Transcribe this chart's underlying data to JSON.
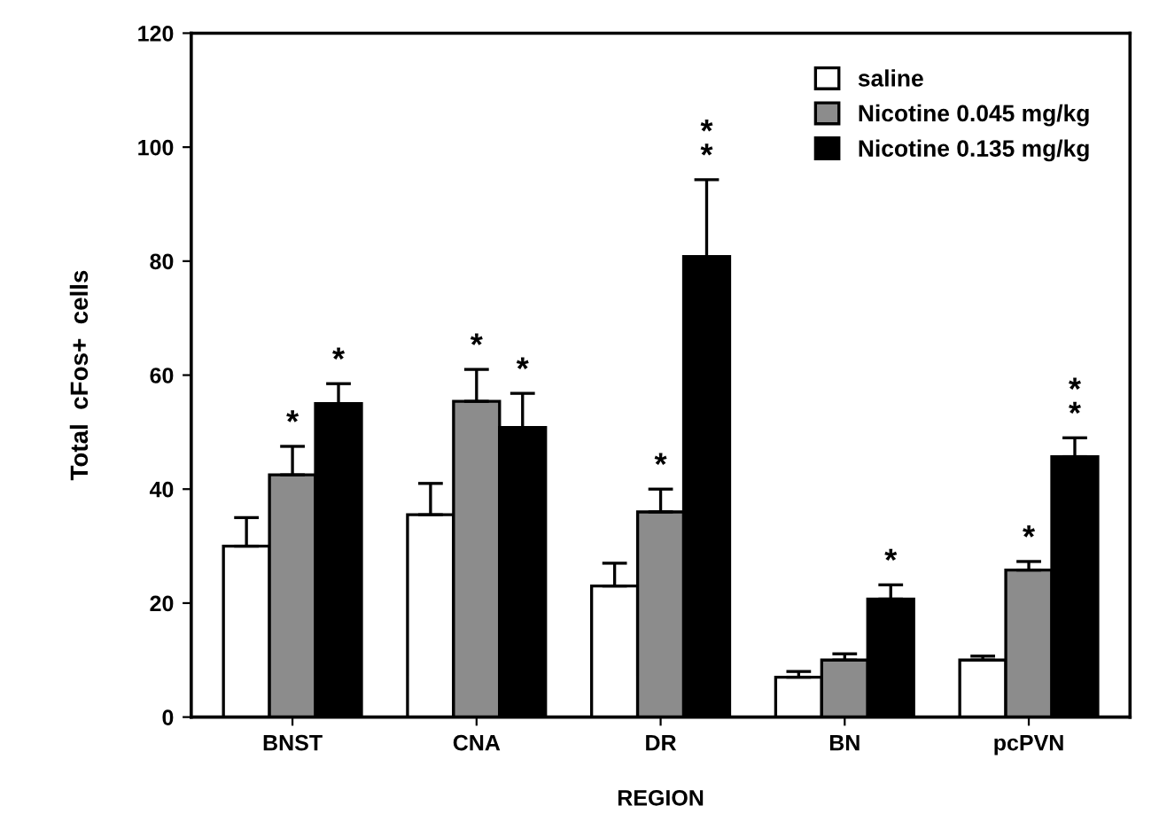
{
  "chart_data": {
    "type": "bar",
    "xlabel": "REGION",
    "ylabel": "Total  cFos+  cells",
    "categories": [
      "BNST",
      "CNA",
      "DR",
      "BN",
      "pcPVN"
    ],
    "series": [
      {
        "name": "saline",
        "color": "#ffffff",
        "values": [
          30,
          35.5,
          23,
          7,
          10
        ],
        "errors": [
          5,
          5.5,
          4,
          1,
          0.7
        ],
        "value_labels": [
          null,
          null,
          null,
          null,
          null
        ]
      },
      {
        "name": "Nicotine 0.045 mg/kg",
        "color": "#8c8c8c",
        "values": [
          42.5,
          55.4,
          36,
          10,
          25.8
        ],
        "errors": [
          5,
          5.6,
          4,
          1.1,
          1.5
        ],
        "value_labels": [
          "*",
          "*",
          "*",
          null,
          "*"
        ]
      },
      {
        "name": "Nicotine 0.135 mg/kg",
        "color": "#000000",
        "values": [
          55,
          50.8,
          80.8,
          20.7,
          45.7
        ],
        "errors": [
          3.5,
          6,
          13.5,
          2.5,
          3.3
        ],
        "value_labels": [
          "*",
          "*",
          "*\n*",
          "*",
          "*\n*"
        ]
      }
    ],
    "ylim": [
      0,
      120
    ],
    "yticks": [
      0,
      20,
      40,
      60,
      80,
      100,
      120
    ],
    "legend": "top right",
    "grid": false
  }
}
